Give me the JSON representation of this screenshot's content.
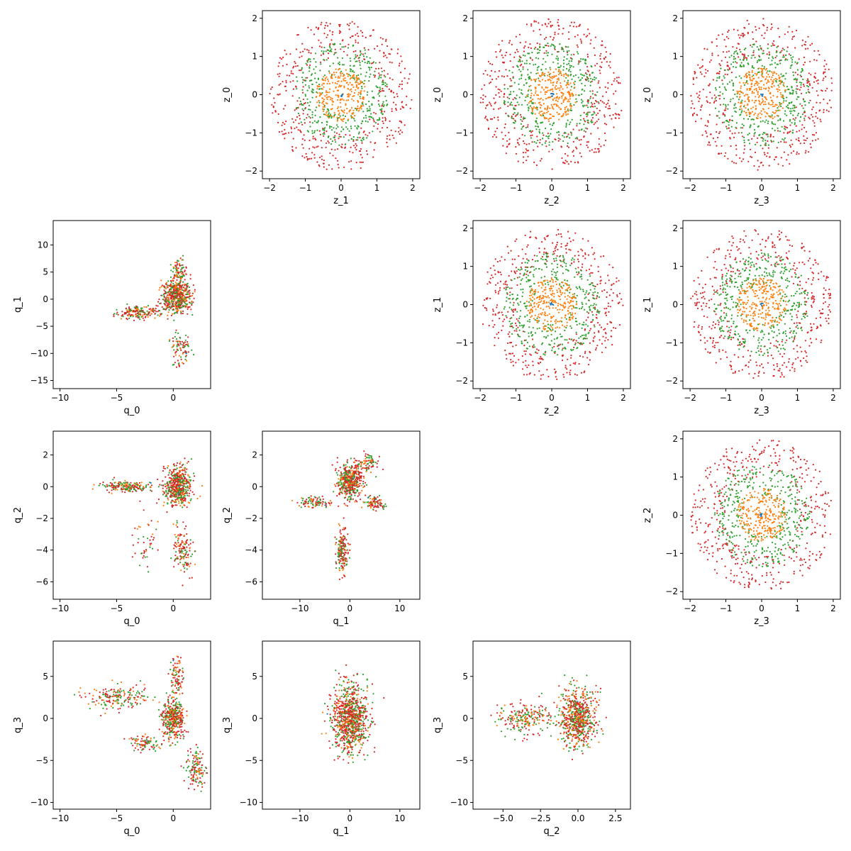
{
  "figure": {
    "type": "scatter-matrix",
    "grid": "4x4",
    "upper_triangle_variables": [
      "z_0",
      "z_1",
      "z_2",
      "z_3"
    ],
    "lower_triangle_variables": [
      "q_0",
      "q_1",
      "q_2",
      "q_3"
    ],
    "series_colors": [
      "#1f77b4",
      "#ff7f0e",
      "#2ca02c",
      "#d62728"
    ],
    "marker": "dot",
    "grid_lines": false,
    "legend": "none"
  },
  "chart_data": [
    {
      "type": "scatter",
      "row": 0,
      "col": 1,
      "xlabel": "z_1",
      "ylabel": "z_0",
      "xlim": [
        -2.2,
        2.2
      ],
      "ylim": [
        -2.2,
        2.2
      ],
      "xticks": [
        -2,
        -1,
        0,
        1,
        2
      ],
      "yticks": [
        -2,
        -1,
        0,
        1,
        2
      ],
      "xtick_labels": [
        "−2",
        "−1",
        "0",
        "1",
        "2"
      ],
      "ytick_labels": [
        "−2",
        "−1",
        "0",
        "1",
        "2"
      ],
      "distribution": {
        "kind": "rings",
        "radii": [
          0.05,
          0.7,
          1.35,
          2.0
        ]
      }
    },
    {
      "type": "scatter",
      "row": 0,
      "col": 2,
      "xlabel": "z_2",
      "ylabel": "z_0",
      "xlim": [
        -2.2,
        2.2
      ],
      "ylim": [
        -2.2,
        2.2
      ],
      "xticks": [
        -2,
        -1,
        0,
        1,
        2
      ],
      "yticks": [
        -2,
        -1,
        0,
        1,
        2
      ],
      "xtick_labels": [
        "−2",
        "−1",
        "0",
        "1",
        "2"
      ],
      "ytick_labels": [
        "−2",
        "−1",
        "0",
        "1",
        "2"
      ],
      "distribution": {
        "kind": "rings",
        "radii": [
          0.05,
          0.7,
          1.35,
          2.0
        ]
      }
    },
    {
      "type": "scatter",
      "row": 0,
      "col": 3,
      "xlabel": "z_3",
      "ylabel": "z_0",
      "xlim": [
        -2.2,
        2.2
      ],
      "ylim": [
        -2.2,
        2.2
      ],
      "xticks": [
        -2,
        -1,
        0,
        1,
        2
      ],
      "yticks": [
        -2,
        -1,
        0,
        1,
        2
      ],
      "xtick_labels": [
        "−2",
        "−1",
        "0",
        "1",
        "2"
      ],
      "ytick_labels": [
        "−2",
        "−1",
        "0",
        "1",
        "2"
      ],
      "distribution": {
        "kind": "rings",
        "radii": [
          0.05,
          0.7,
          1.35,
          2.0
        ]
      }
    },
    {
      "type": "scatter",
      "row": 1,
      "col": 2,
      "xlabel": "z_2",
      "ylabel": "z_1",
      "xlim": [
        -2.2,
        2.2
      ],
      "ylim": [
        -2.2,
        2.2
      ],
      "xticks": [
        -2,
        -1,
        0,
        1,
        2
      ],
      "yticks": [
        -2,
        -1,
        0,
        1,
        2
      ],
      "xtick_labels": [
        "−2",
        "−1",
        "0",
        "1",
        "2"
      ],
      "ytick_labels": [
        "−2",
        "−1",
        "0",
        "1",
        "2"
      ],
      "distribution": {
        "kind": "rings",
        "radii": [
          0.05,
          0.7,
          1.35,
          2.0
        ]
      }
    },
    {
      "type": "scatter",
      "row": 1,
      "col": 3,
      "xlabel": "z_3",
      "ylabel": "z_1",
      "xlim": [
        -2.2,
        2.2
      ],
      "ylim": [
        -2.2,
        2.2
      ],
      "xticks": [
        -2,
        -1,
        0,
        1,
        2
      ],
      "yticks": [
        -2,
        -1,
        0,
        1,
        2
      ],
      "xtick_labels": [
        "−2",
        "−1",
        "0",
        "1",
        "2"
      ],
      "ytick_labels": [
        "−2",
        "−1",
        "0",
        "1",
        "2"
      ],
      "distribution": {
        "kind": "rings",
        "radii": [
          0.05,
          0.7,
          1.35,
          2.0
        ]
      }
    },
    {
      "type": "scatter",
      "row": 2,
      "col": 3,
      "xlabel": "z_3",
      "ylabel": "z_2",
      "xlim": [
        -2.2,
        2.2
      ],
      "ylim": [
        -2.2,
        2.2
      ],
      "xticks": [
        -2,
        -1,
        0,
        1,
        2
      ],
      "yticks": [
        -2,
        -1,
        0,
        1,
        2
      ],
      "xtick_labels": [
        "−2",
        "−1",
        "0",
        "1",
        "2"
      ],
      "ytick_labels": [
        "−2",
        "−1",
        "0",
        "1",
        "2"
      ],
      "distribution": {
        "kind": "rings",
        "radii": [
          0.05,
          0.7,
          1.35,
          2.0
        ]
      }
    },
    {
      "type": "scatter",
      "row": 1,
      "col": 0,
      "xlabel": "q_0",
      "ylabel": "q_1",
      "xlim": [
        -10.6,
        3.3
      ],
      "ylim": [
        -16.5,
        14.5
      ],
      "xticks": [
        -10,
        -5,
        0
      ],
      "yticks": [
        -15,
        -10,
        -5,
        0,
        5,
        10
      ],
      "xtick_labels": [
        "−10",
        "−5",
        "0"
      ],
      "ytick_labels": [
        "−15",
        "−10",
        "−5",
        "0",
        "5",
        "10"
      ],
      "distribution": {
        "kind": "clusters",
        "groups": [
          {
            "center": [
              0.3,
              0.5
            ],
            "spread": [
              1.0,
              2.5
            ],
            "weight": 0.6
          },
          {
            "center": [
              -3.0,
              -2.5
            ],
            "spread": [
              1.8,
              1.0
            ],
            "weight": 0.2
          },
          {
            "center": [
              0.5,
              5.0
            ],
            "spread": [
              0.6,
              2.0
            ],
            "weight": 0.1
          },
          {
            "center": [
              0.6,
              -9.0
            ],
            "spread": [
              0.8,
              3.0
            ],
            "weight": 0.1
          }
        ]
      }
    },
    {
      "type": "scatter",
      "row": 2,
      "col": 0,
      "xlabel": "q_0",
      "ylabel": "q_2",
      "xlim": [
        -10.6,
        3.3
      ],
      "ylim": [
        -7.1,
        3.5
      ],
      "xticks": [
        -10,
        -5,
        0
      ],
      "yticks": [
        -6,
        -4,
        -2,
        0,
        2
      ],
      "xtick_labels": [
        "−10",
        "−5",
        "0"
      ],
      "ytick_labels": [
        "−6",
        "−4",
        "−2",
        "0",
        "2"
      ],
      "distribution": {
        "kind": "clusters",
        "groups": [
          {
            "center": [
              0.4,
              0.0
            ],
            "spread": [
              1.0,
              1.0
            ],
            "weight": 0.6
          },
          {
            "center": [
              -4.0,
              0.0
            ],
            "spread": [
              2.0,
              0.3
            ],
            "weight": 0.2
          },
          {
            "center": [
              0.8,
              -4.0
            ],
            "spread": [
              0.7,
              1.3
            ],
            "weight": 0.15
          },
          {
            "center": [
              -2.5,
              -3.5
            ],
            "spread": [
              1.0,
              1.5
            ],
            "weight": 0.05
          }
        ]
      }
    },
    {
      "type": "scatter",
      "row": 2,
      "col": 1,
      "xlabel": "q_1",
      "ylabel": "q_2",
      "xlim": [
        -17.5,
        14.0
      ],
      "ylim": [
        -7.1,
        3.5
      ],
      "xticks": [
        -10,
        0,
        10
      ],
      "yticks": [
        -6,
        -4,
        -2,
        0,
        2
      ],
      "xtick_labels": [
        "−10",
        "0",
        "10"
      ],
      "ytick_labels": [
        "−6",
        "−4",
        "−2",
        "0",
        "2"
      ],
      "distribution": {
        "kind": "clusters",
        "groups": [
          {
            "center": [
              0.0,
              0.3
            ],
            "spread": [
              2.0,
              0.9
            ],
            "weight": 0.5
          },
          {
            "center": [
              -1.5,
              -4.0
            ],
            "spread": [
              1.0,
              1.2
            ],
            "weight": 0.2
          },
          {
            "center": [
              -7.0,
              -1.0
            ],
            "spread": [
              3.0,
              0.3
            ],
            "weight": 0.1
          },
          {
            "center": [
              5.0,
              -1.0
            ],
            "spread": [
              2.0,
              0.3
            ],
            "weight": 0.1
          },
          {
            "center": [
              3.0,
              1.5
            ],
            "spread": [
              2.0,
              0.5
            ],
            "weight": 0.1
          }
        ]
      }
    },
    {
      "type": "scatter",
      "row": 3,
      "col": 0,
      "xlabel": "q_0",
      "ylabel": "q_3",
      "xlim": [
        -10.6,
        3.3
      ],
      "ylim": [
        -10.8,
        9.2
      ],
      "xticks": [
        -10,
        -5,
        0
      ],
      "yticks": [
        -10,
        -5,
        0,
        5
      ],
      "xtick_labels": [
        "−10",
        "−5",
        "0"
      ],
      "ytick_labels": [
        "−10",
        "−5",
        "0",
        "5"
      ],
      "distribution": {
        "kind": "clusters",
        "groups": [
          {
            "center": [
              0.0,
              0.0
            ],
            "spread": [
              0.8,
              2.0
            ],
            "weight": 0.45
          },
          {
            "center": [
              -5.0,
              2.5
            ],
            "spread": [
              2.2,
              1.2
            ],
            "weight": 0.2
          },
          {
            "center": [
              0.3,
              5.0
            ],
            "spread": [
              0.5,
              2.0
            ],
            "weight": 0.1
          },
          {
            "center": [
              2.0,
              -6.0
            ],
            "spread": [
              0.7,
              2.0
            ],
            "weight": 0.15
          },
          {
            "center": [
              -2.5,
              -3.0
            ],
            "spread": [
              1.0,
              0.8
            ],
            "weight": 0.1
          }
        ]
      }
    },
    {
      "type": "scatter",
      "row": 3,
      "col": 1,
      "xlabel": "q_1",
      "ylabel": "q_3",
      "xlim": [
        -17.5,
        14.0
      ],
      "ylim": [
        -10.8,
        9.2
      ],
      "xticks": [
        -10,
        0,
        10
      ],
      "yticks": [
        -10,
        -5,
        0,
        5
      ],
      "xtick_labels": [
        "−10",
        "0",
        "10"
      ],
      "ytick_labels": [
        "−10",
        "−5",
        "0",
        "5"
      ],
      "distribution": {
        "kind": "clusters",
        "groups": [
          {
            "center": [
              0.0,
              0.0
            ],
            "spread": [
              3.0,
              3.2
            ],
            "weight": 1.0
          }
        ]
      }
    },
    {
      "type": "scatter",
      "row": 3,
      "col": 2,
      "xlabel": "q_2",
      "ylabel": "q_3",
      "xlim": [
        -7.0,
        3.5
      ],
      "ylim": [
        -10.8,
        9.2
      ],
      "xticks": [
        -5.0,
        -2.5,
        0.0,
        2.5
      ],
      "yticks": [
        -10,
        -5,
        0,
        5
      ],
      "xtick_labels": [
        "−5.0",
        "−2.5",
        "0.0",
        "2.5"
      ],
      "ytick_labels": [
        "−10",
        "−5",
        "0",
        "5"
      ],
      "distribution": {
        "kind": "clusters",
        "groups": [
          {
            "center": [
              0.0,
              0.0
            ],
            "spread": [
              1.0,
              3.0
            ],
            "weight": 0.75
          },
          {
            "center": [
              -3.5,
              0.0
            ],
            "spread": [
              1.5,
              1.5
            ],
            "weight": 0.25
          }
        ]
      }
    }
  ]
}
